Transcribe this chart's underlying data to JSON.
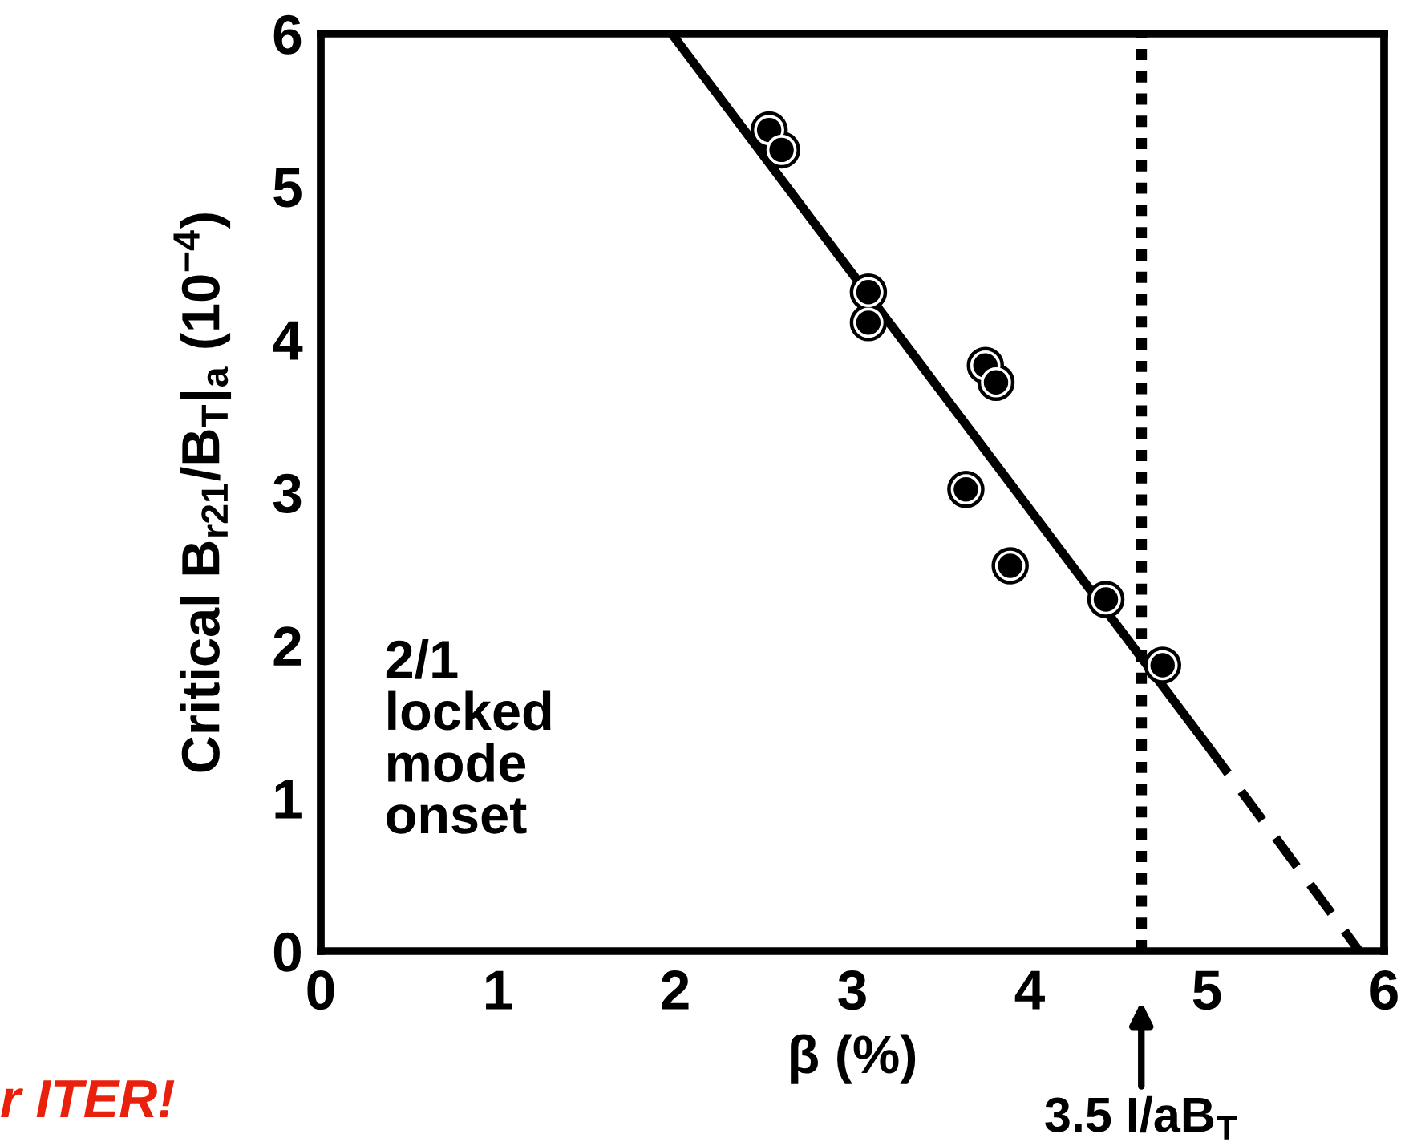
{
  "chart_data": {
    "type": "scatter",
    "xlabel": "β (%)",
    "ylabel": "Critical B$_{r21}$/B$_{T}$|$_{a}$ (10$^{−4}$)",
    "xlim": [
      0,
      6
    ],
    "ylim": [
      0,
      6
    ],
    "xticks": [
      0,
      1,
      2,
      3,
      4,
      5,
      6
    ],
    "yticks": [
      0,
      1,
      2,
      3,
      4,
      5,
      6
    ],
    "grid": false,
    "series": [
      {
        "color": "#000000",
        "marker": "circle",
        "x": [
          2.53,
          2.6,
          3.09,
          3.09,
          3.75,
          3.81,
          3.64,
          3.89,
          4.43,
          4.75
        ],
        "values": [
          5.37,
          5.24,
          4.31,
          4.11,
          3.83,
          3.72,
          3.02,
          2.52,
          2.3,
          1.87
        ]
      },
      {
        "type": "line",
        "color": "#000000",
        "line_style": "solid",
        "marker": "none",
        "x": [
          1.98,
          5.0
        ],
        "values": [
          6,
          1.35
        ]
      },
      {
        "type": "line",
        "color": "#000000",
        "line_style": "dashed",
        "marker": "none",
        "x": [
          5.0,
          5.86
        ],
        "values": [
          1.35,
          0
        ]
      }
    ],
    "ref_lines": [
      {
        "axis": "x",
        "value": 4.63,
        "label": "3.5 I/aB$_{T}$",
        "color": "#000000",
        "line_style": "dotted"
      }
    ],
    "annotations": [
      "2/1\nlocked\nmode\nonset",
      "r ITER!"
    ]
  }
}
